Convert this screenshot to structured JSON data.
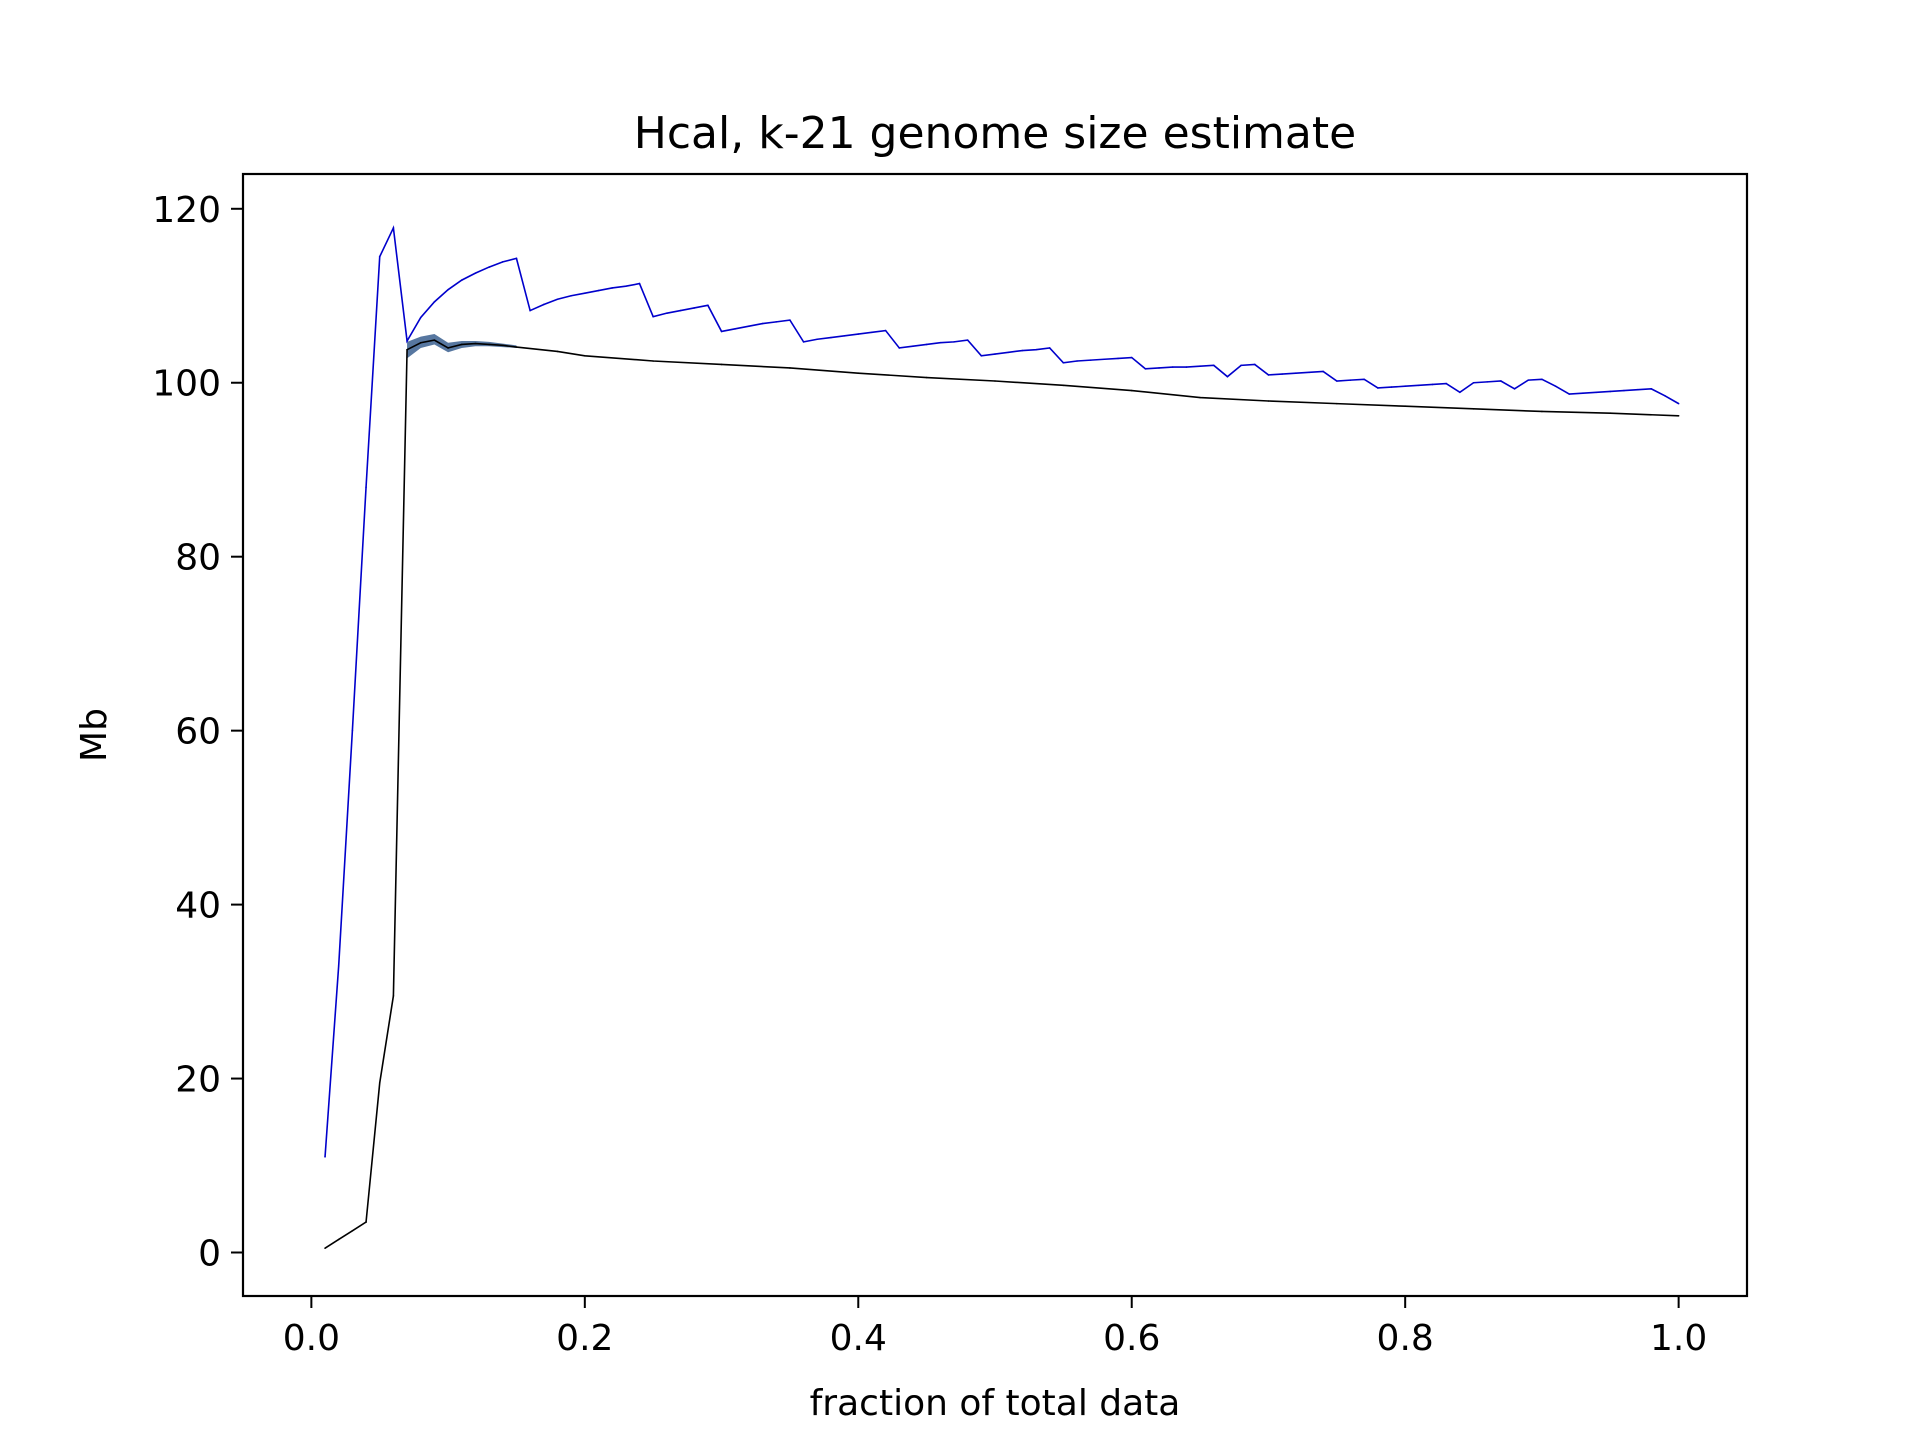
{
  "chart_data": {
    "type": "line",
    "title": "Hcal, k-21 genome size estimate",
    "xlabel": "fraction of total data",
    "ylabel": "Mb",
    "xlim": [
      -0.05,
      1.05
    ],
    "ylim": [
      -5,
      124
    ],
    "xticks": [
      0.0,
      0.2,
      0.4,
      0.6,
      0.8,
      1.0
    ],
    "xtick_labels": [
      "0.0",
      "0.2",
      "0.4",
      "0.6",
      "0.8",
      "1.0"
    ],
    "yticks": [
      0,
      20,
      40,
      60,
      80,
      100,
      120
    ],
    "ytick_labels": [
      "0",
      "20",
      "40",
      "60",
      "80",
      "100",
      "120"
    ],
    "grid": false,
    "legend": false,
    "colors": {
      "series_blue": "#0000cc",
      "series_black": "#000000",
      "band_fill": "#3a5f8f"
    },
    "series": [
      {
        "color": "#0000cc",
        "x": [
          0.01,
          0.02,
          0.03,
          0.04,
          0.05,
          0.06,
          0.07,
          0.08,
          0.09,
          0.1,
          0.11,
          0.12,
          0.13,
          0.14,
          0.15,
          0.16,
          0.17,
          0.18,
          0.19,
          0.2,
          0.21,
          0.22,
          0.23,
          0.24,
          0.25,
          0.26,
          0.27,
          0.28,
          0.29,
          0.3,
          0.31,
          0.32,
          0.33,
          0.34,
          0.35,
          0.36,
          0.37,
          0.38,
          0.39,
          0.4,
          0.41,
          0.42,
          0.43,
          0.44,
          0.45,
          0.46,
          0.47,
          0.48,
          0.49,
          0.5,
          0.51,
          0.52,
          0.53,
          0.54,
          0.55,
          0.56,
          0.57,
          0.58,
          0.59,
          0.6,
          0.61,
          0.62,
          0.63,
          0.64,
          0.65,
          0.66,
          0.67,
          0.68,
          0.69,
          0.7,
          0.71,
          0.72,
          0.73,
          0.74,
          0.75,
          0.76,
          0.77,
          0.78,
          0.79,
          0.8,
          0.81,
          0.82,
          0.83,
          0.84,
          0.85,
          0.86,
          0.87,
          0.88,
          0.89,
          0.9,
          0.91,
          0.92,
          0.93,
          0.94,
          0.95,
          0.96,
          0.97,
          0.98,
          0.99,
          1.0
        ],
        "y": [
          11,
          33,
          60,
          88,
          114.5,
          117.8,
          104.8,
          107.5,
          109.3,
          110.7,
          111.8,
          112.6,
          113.3,
          113.9,
          114.3,
          108.3,
          109.0,
          109.6,
          110.0,
          110.3,
          110.6,
          110.9,
          111.1,
          111.4,
          107.6,
          108.0,
          108.3,
          108.6,
          108.9,
          105.9,
          106.2,
          106.5,
          106.8,
          107.0,
          107.2,
          104.7,
          105.0,
          105.2,
          105.4,
          105.6,
          105.8,
          106.0,
          104.0,
          104.2,
          104.4,
          104.6,
          104.7,
          104.9,
          103.1,
          103.3,
          103.5,
          103.7,
          103.8,
          104.0,
          102.3,
          102.5,
          102.6,
          102.7,
          102.8,
          102.9,
          101.6,
          101.7,
          101.8,
          101.8,
          101.9,
          102.0,
          100.7,
          102.0,
          102.1,
          100.9,
          101.0,
          101.1,
          101.2,
          101.3,
          100.2,
          100.3,
          100.4,
          99.4,
          99.5,
          99.6,
          99.7,
          99.8,
          99.9,
          98.9,
          100.0,
          100.1,
          100.2,
          99.3,
          100.3,
          100.4,
          99.6,
          98.7,
          98.8,
          98.9,
          99.0,
          99.1,
          99.2,
          99.3,
          98.5,
          97.6
        ]
      },
      {
        "color": "#000000",
        "x": [
          0.01,
          0.02,
          0.03,
          0.04,
          0.05,
          0.06,
          0.07,
          0.08,
          0.09,
          0.1,
          0.11,
          0.12,
          0.13,
          0.14,
          0.15,
          0.18,
          0.2,
          0.25,
          0.3,
          0.35,
          0.4,
          0.45,
          0.5,
          0.55,
          0.6,
          0.65,
          0.7,
          0.75,
          0.8,
          0.85,
          0.9,
          0.95,
          1.0
        ],
        "y": [
          0.5,
          1.5,
          2.5,
          3.5,
          19.5,
          29.5,
          103.8,
          104.6,
          104.9,
          104.0,
          104.4,
          104.5,
          104.4,
          104.3,
          104.1,
          103.6,
          103.1,
          102.5,
          102.1,
          101.7,
          101.1,
          100.6,
          100.2,
          99.7,
          99.1,
          98.3,
          97.9,
          97.6,
          97.3,
          97.0,
          96.7,
          96.5,
          96.2
        ],
        "band_x": [
          0.07,
          0.08,
          0.09,
          0.1,
          0.11,
          0.12,
          0.13,
          0.14,
          0.15
        ],
        "band_lower": [
          102.8,
          104.0,
          104.4,
          103.5,
          104.0,
          104.2,
          104.2,
          104.1,
          104.0
        ],
        "band_upper": [
          104.7,
          105.3,
          105.6,
          104.6,
          104.8,
          104.8,
          104.7,
          104.5,
          104.3
        ]
      }
    ]
  }
}
